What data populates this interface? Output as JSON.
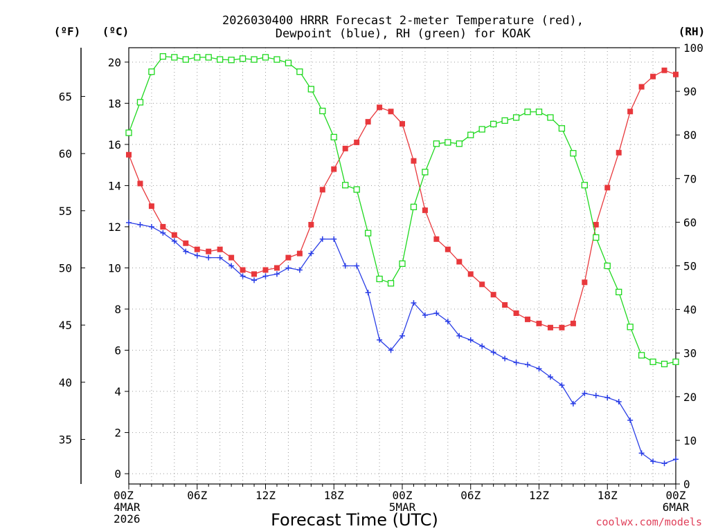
{
  "colors": {
    "temperature": "#e8383c",
    "dewpoint": "#2a3ee6",
    "rh": "#1ed81e",
    "grid": "#999999",
    "credit": "#e0405a"
  },
  "chart_data": {
    "type": "line",
    "title_lines": [
      "2026030400 HRRR Forecast 2-meter Temperature (red),",
      "Dewpoint (blue), RH (green) for KOAK"
    ],
    "xlabel": "Forecast Time (UTC)",
    "credit": "coolwx.com/models",
    "x_hours": [
      0,
      1,
      2,
      3,
      4,
      5,
      6,
      7,
      8,
      9,
      10,
      11,
      12,
      13,
      14,
      15,
      16,
      17,
      18,
      19,
      20,
      21,
      22,
      23,
      24,
      25,
      26,
      27,
      28,
      29,
      30,
      31,
      32,
      33,
      34,
      35,
      36,
      37,
      38,
      39,
      40,
      41,
      42,
      43,
      44,
      45,
      46,
      47,
      48
    ],
    "x_tick_labels": [
      {
        "hour": 0,
        "lines": [
          "00Z",
          "4MAR",
          "2026"
        ]
      },
      {
        "hour": 6,
        "lines": [
          "06Z"
        ]
      },
      {
        "hour": 12,
        "lines": [
          "12Z"
        ]
      },
      {
        "hour": 18,
        "lines": [
          "18Z"
        ]
      },
      {
        "hour": 24,
        "lines": [
          "00Z",
          "5MAR"
        ]
      },
      {
        "hour": 30,
        "lines": [
          "06Z"
        ]
      },
      {
        "hour": 36,
        "lines": [
          "12Z"
        ]
      },
      {
        "hour": 42,
        "lines": [
          "18Z"
        ]
      },
      {
        "hour": 48,
        "lines": [
          "00Z",
          "6MAR"
        ]
      }
    ],
    "axes": {
      "celsius": {
        "unit_label": "(ºC)",
        "range": [
          -0.5,
          20.7
        ],
        "ticks": [
          0,
          2,
          4,
          6,
          8,
          10,
          12,
          14,
          16,
          18,
          20
        ]
      },
      "fahrenheit": {
        "unit_label": "(ºF)",
        "ticks": [
          35,
          40,
          45,
          50,
          55,
          60,
          65
        ]
      },
      "rh": {
        "unit_label": "(RH)",
        "range": [
          0,
          100
        ],
        "ticks": [
          0,
          10,
          20,
          30,
          40,
          50,
          60,
          70,
          80,
          90,
          100
        ]
      }
    },
    "series": [
      {
        "key": "temperature",
        "unit": "C",
        "marker": "filled-square",
        "values": [
          15.5,
          14.1,
          13.0,
          12.0,
          11.6,
          11.2,
          10.9,
          10.8,
          10.9,
          10.5,
          9.9,
          9.7,
          9.9,
          10.0,
          10.5,
          10.7,
          12.1,
          13.8,
          14.8,
          15.8,
          16.1,
          17.1,
          17.8,
          17.6,
          17.0,
          15.2,
          12.8,
          11.4,
          10.9,
          10.3,
          9.7,
          9.2,
          8.7,
          8.2,
          7.8,
          7.5,
          7.3,
          7.1,
          7.1,
          7.3,
          9.3,
          12.1,
          13.9,
          15.6,
          17.6,
          18.8,
          19.3,
          19.6,
          19.4
        ]
      },
      {
        "key": "dewpoint",
        "unit": "C",
        "marker": "plus",
        "values": [
          12.2,
          12.1,
          12.0,
          11.7,
          11.3,
          10.8,
          10.6,
          10.5,
          10.5,
          10.1,
          9.6,
          9.4,
          9.6,
          9.7,
          10.0,
          9.9,
          10.7,
          11.4,
          11.4,
          10.1,
          10.1,
          8.8,
          6.5,
          6.0,
          6.7,
          8.3,
          7.7,
          7.8,
          7.4,
          6.7,
          6.5,
          6.2,
          5.9,
          5.6,
          5.4,
          5.3,
          5.1,
          4.7,
          4.3,
          3.4,
          3.9,
          3.8,
          3.7,
          3.5,
          2.6,
          1.0,
          0.6,
          0.5,
          0.7
        ]
      },
      {
        "key": "rh",
        "unit": "%",
        "marker": "open-square",
        "values": [
          80.5,
          87.5,
          94.5,
          98.0,
          97.8,
          97.3,
          97.8,
          97.8,
          97.3,
          97.2,
          97.5,
          97.3,
          97.8,
          97.3,
          96.5,
          94.5,
          90.5,
          85.5,
          79.5,
          68.5,
          67.5,
          57.5,
          47.0,
          46.0,
          50.5,
          63.5,
          71.5,
          78.0,
          78.3,
          78.0,
          80.0,
          81.3,
          82.5,
          83.3,
          84.0,
          85.3,
          85.3,
          84.0,
          81.5,
          75.8,
          68.5,
          56.5,
          50.0,
          44.0,
          36.0,
          29.5,
          28.0,
          27.5,
          28.0
        ]
      }
    ]
  }
}
